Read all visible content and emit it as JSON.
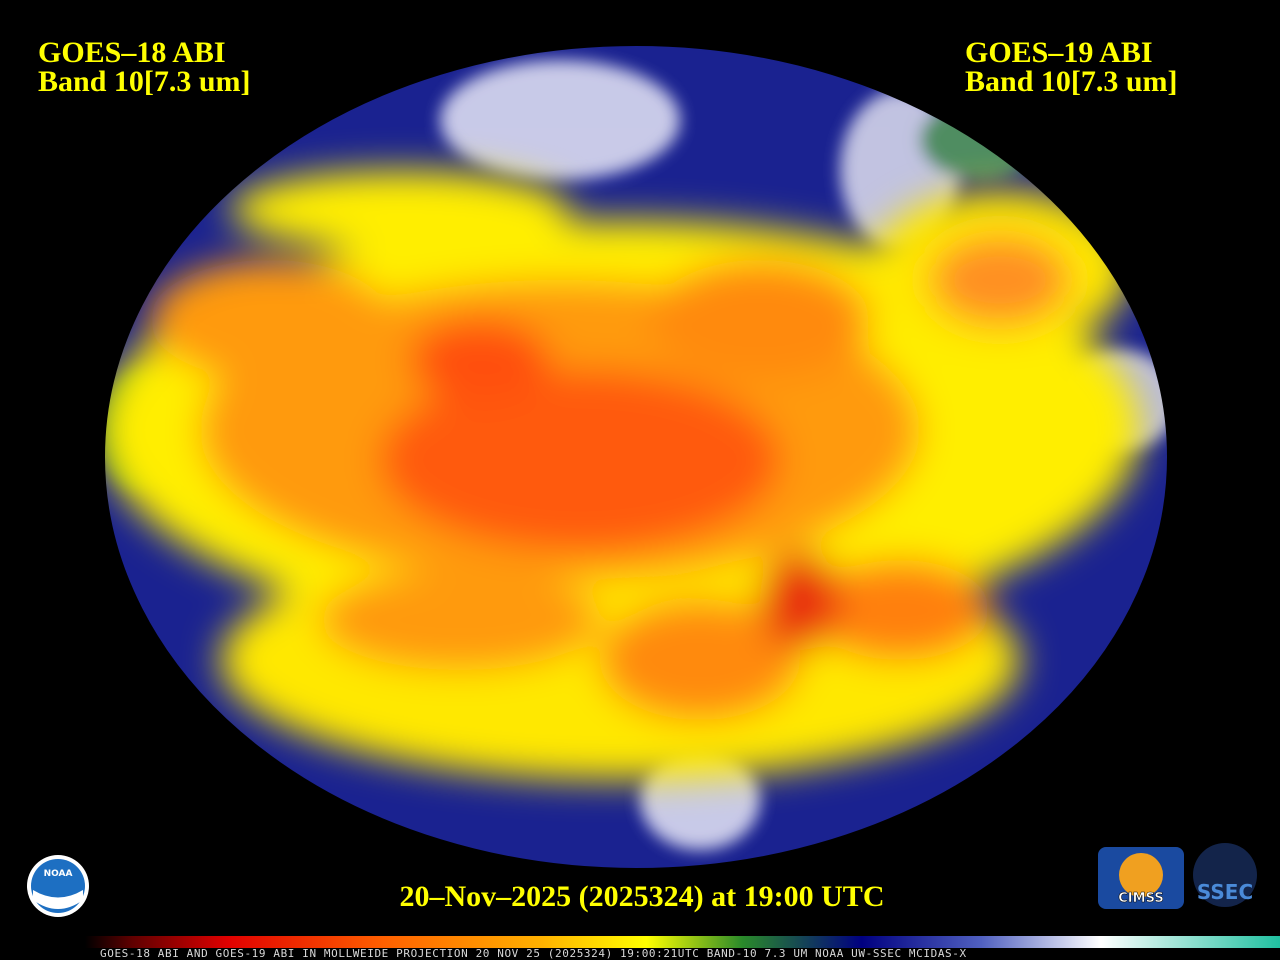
{
  "labels": {
    "left_satellite": "GOES–18 ABI",
    "left_band": "Band 10[7.3 um]",
    "right_satellite": "GOES–19 ABI",
    "right_band": "Band 10[7.3 um]",
    "timestamp": "20–Nov–2025 (2025324) at 19:00 UTC",
    "caption": "GOES-18 ABI AND GOES-19 ABI IN MOLLWEIDE PROJECTION 20 NOV 25 (2025324) 19:00:21UTC BAND-10 7.3 UM NOAA UW-SSEC MCIDAS-X"
  },
  "logos": {
    "noaa": "NOAA",
    "cimss": "CIMSS",
    "ssec": "SSEC"
  }
}
